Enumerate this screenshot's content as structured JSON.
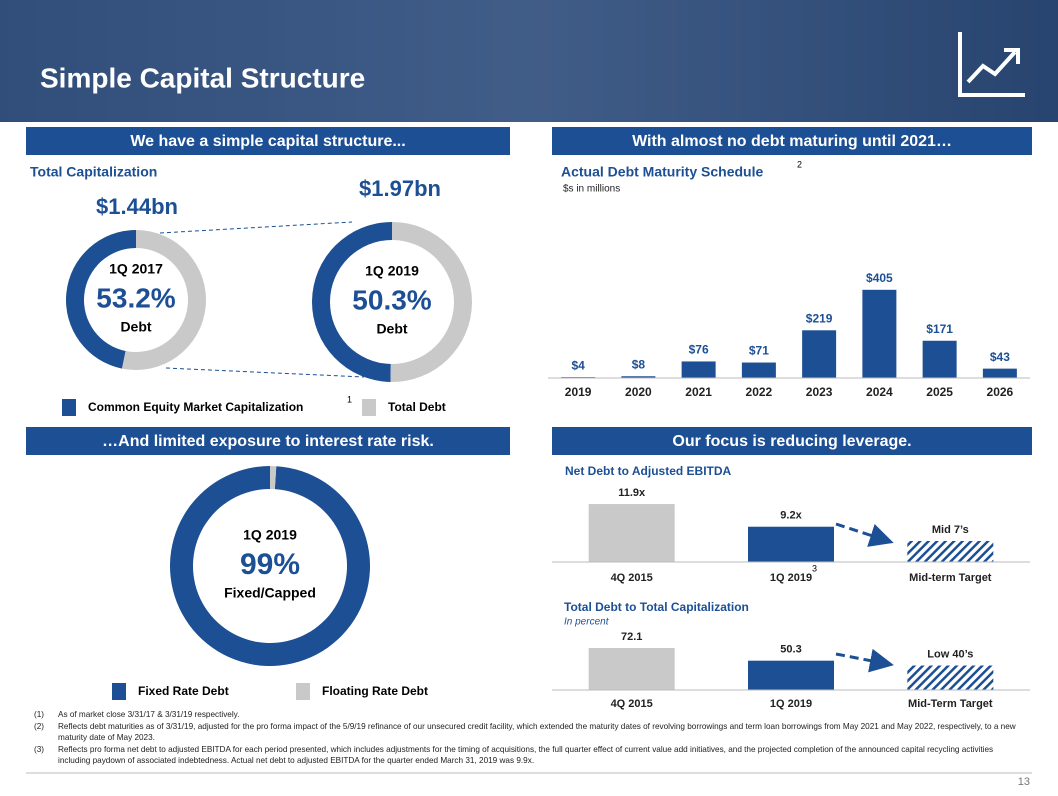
{
  "header": {
    "title": "Simple Capital Structure"
  },
  "sections": [
    "We have a simple capital structure...",
    "With almost no debt maturing until 2021…",
    "…And limited exposure to interest rate risk.",
    "Our focus is reducing leverage."
  ],
  "chart_data": [
    {
      "type": "donut",
      "title": "Total Capitalization",
      "categories": [
        "Common Equity Market Capitalization",
        "Total Debt"
      ],
      "legend_footnote": "1",
      "colors": [
        "#1c4f94",
        "#c9c9c9"
      ],
      "series": [
        {
          "name": "1Q 2017",
          "total_label": "$1.44bn",
          "values": [
            46.8,
            53.2
          ],
          "value_labels": [
            null,
            "53.2%"
          ],
          "value_caption": "Debt"
        },
        {
          "name": "1Q 2019",
          "total_label": "$1.97bn",
          "values": [
            49.7,
            50.3
          ],
          "value_labels": [
            null,
            "50.3%"
          ],
          "value_caption": "Debt"
        }
      ]
    },
    {
      "type": "bar",
      "title": "Actual Debt Maturity Schedule",
      "title_footnote": "2",
      "subtitle": "$s in millions",
      "categories": [
        "2019",
        "2020",
        "2021",
        "2022",
        "2023",
        "2024",
        "2025",
        "2026"
      ],
      "values": [
        4,
        8,
        76,
        71,
        219,
        405,
        171,
        43
      ],
      "value_labels": [
        "$4",
        "$8",
        "$76",
        "$71",
        "$219",
        "$405",
        "$171",
        "$43"
      ],
      "color": "#1c4f94",
      "ylim": [
        0,
        450
      ]
    },
    {
      "type": "donut",
      "categories": [
        "Fixed Rate Debt",
        "Floating Rate Debt"
      ],
      "colors": [
        "#1c4f94",
        "#c9c9c9"
      ],
      "series": [
        {
          "name": "1Q 2019",
          "values": [
            99,
            1
          ],
          "value_labels": [
            "99%",
            null
          ],
          "value_caption": "Fixed/Capped"
        }
      ]
    },
    {
      "type": "bar",
      "title": "Net Debt to Adjusted EBITDA",
      "categories": [
        "4Q 2015",
        "1Q 2019",
        "Mid-term Target"
      ],
      "category_footnotes": [
        null,
        "3",
        null
      ],
      "values": [
        11.9,
        9.2,
        7.5
      ],
      "value_labels": [
        "11.9x",
        "9.2x",
        "Mid 7’s"
      ],
      "colors": [
        "#c9c9c9",
        "#1c4f94",
        "#1c4f94"
      ],
      "patterns": [
        "solid",
        "solid",
        "hatched"
      ],
      "ylim": [
        5,
        12
      ]
    },
    {
      "type": "bar",
      "title": "Total Debt to Total Capitalization",
      "subtitle": "In percent",
      "categories": [
        "4Q 2015",
        "1Q 2019",
        "Mid-Term Target"
      ],
      "values": [
        72.1,
        50.3,
        42
      ],
      "value_labels": [
        null,
        null,
        "Low 40’s"
      ],
      "colors": [
        "#c9c9c9",
        "#1c4f94",
        "#1c4f94"
      ],
      "patterns": [
        "solid",
        "solid",
        "hatched"
      ],
      "ylim": [
        0,
        75
      ]
    }
  ],
  "footnotes": [
    {
      "label": "(1)",
      "text": "As of market close 3/31/17 & 3/31/19 respectively."
    },
    {
      "label": "(2)",
      "text": "Reflects debt maturities as of 3/31/19, adjusted for the pro forma impact of the 5/9/19 refinance of our unsecured credit facility, which extended the maturity dates of revolving borrowings and term loan borrowings from May 2021 and May 2022, respectively, to a new maturity date of May 2023."
    },
    {
      "label": "(3)",
      "text": "Reflects pro forma net debt to adjusted EBITDA for each period presented, which includes adjustments for the timing of acquisitions, the full quarter effect of current value add initiatives, and the projected completion of the announced capital recycling activities including paydown of associated indebtedness. Actual net debt to adjusted EBITDA for the quarter ended March 31, 2019 was 9.9x."
    }
  ],
  "page_number": "13"
}
